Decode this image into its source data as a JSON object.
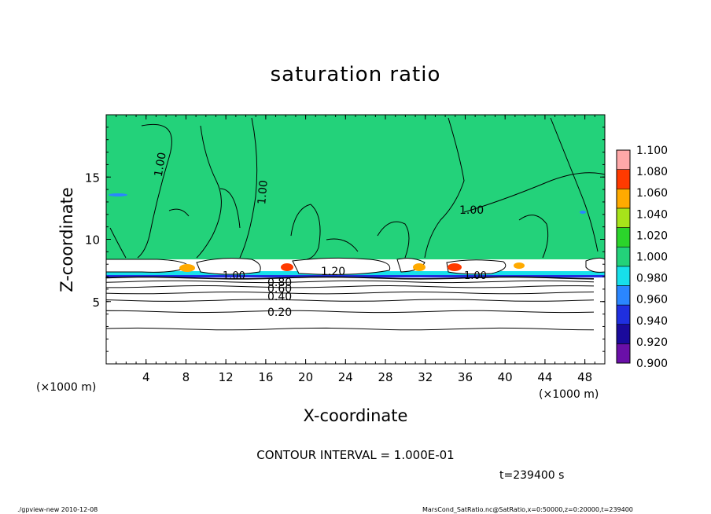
{
  "chart_data": {
    "type": "heatmap",
    "title": "saturation ratio",
    "xlabel": "X-coordinate",
    "ylabel": "Z-coordinate",
    "x_unit": "(×1000 m)",
    "z_unit": "(×1000 m)",
    "xlim": [
      0,
      50
    ],
    "ylim": [
      0,
      20
    ],
    "x_ticks": [
      4,
      8,
      12,
      16,
      20,
      24,
      28,
      32,
      36,
      40,
      44,
      48
    ],
    "y_ticks": [
      5,
      10,
      15
    ],
    "colorbar": {
      "levels": [
        0.9,
        0.92,
        0.94,
        0.96,
        0.98,
        1.0,
        1.02,
        1.04,
        1.06,
        1.08,
        1.1
      ],
      "labels": [
        "0.900",
        "0.920",
        "0.940",
        "0.960",
        "0.980",
        "1.000",
        "1.020",
        "1.040",
        "1.060",
        "1.080",
        "1.100"
      ],
      "colors": [
        "#6a0fa8",
        "#1a0a9c",
        "#1f2fe0",
        "#2a86ff",
        "#17e0ea",
        "#23d27a",
        "#2bd42b",
        "#a7e31a",
        "#ffaa00",
        "#ff3a00",
        "#ffa8a8"
      ]
    },
    "contour_interval": "CONTOUR INTERVAL = 1.000E-01",
    "contour_labels": [
      "1.00",
      "1.00",
      "1.00",
      "1.00",
      "1.00",
      "1.20",
      "0.80",
      "0.60",
      "0.40",
      "0.20"
    ],
    "contour_heights_z": [
      2.8,
      4.2,
      5.1,
      5.7,
      6.2,
      6.6,
      6.9
    ],
    "time_label": "t=239400 s",
    "grid": false
  },
  "footer": {
    "left": "./gpview-new   2010-12-08",
    "right": "MarsCond_SatRatio.nc@SatRatio,x=0:50000,z=0:20000,t=239400"
  }
}
